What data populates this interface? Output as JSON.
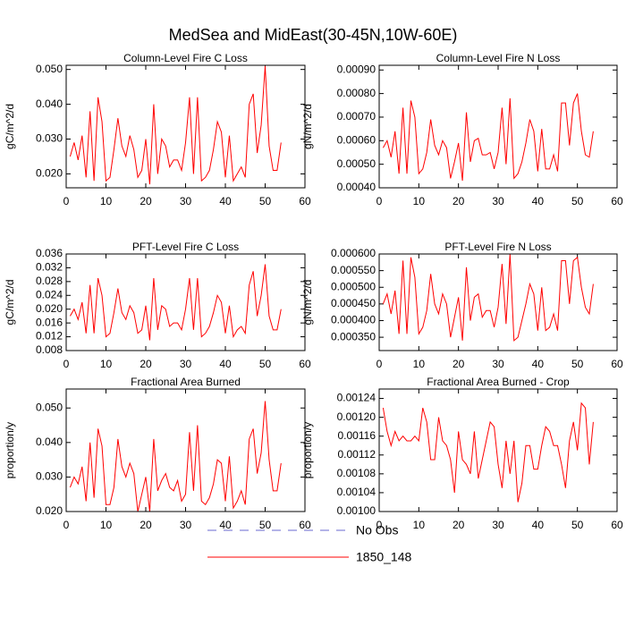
{
  "title": "MedSea and MidEast(30-45N,10W-60E)",
  "legend": [
    {
      "name": "No Obs",
      "color": "#6a6ad0",
      "dash": "dashed"
    },
    {
      "name": "1850_148",
      "color": "#ff0000",
      "dash": "solid"
    }
  ],
  "chart_data": [
    {
      "type": "line",
      "title": "Column-Level Fire C Loss",
      "ylabel": "gC/m^2/d",
      "x": [
        1,
        2,
        3,
        4,
        5,
        6,
        7,
        8,
        9,
        10,
        11,
        12,
        13,
        14,
        15,
        16,
        17,
        18,
        19,
        20,
        21,
        22,
        23,
        24,
        25,
        26,
        27,
        28,
        29,
        30,
        31,
        32,
        33,
        34,
        35,
        36,
        37,
        38,
        39,
        40,
        41,
        42,
        43,
        44,
        45,
        46,
        47,
        48,
        49,
        50,
        51,
        52,
        53,
        54
      ],
      "xlim": [
        0,
        60
      ],
      "xticks": [
        0,
        10,
        20,
        30,
        40,
        50,
        60
      ],
      "ylim": [
        0.016,
        0.0512
      ],
      "yticks": [
        {
          "value": 0.02,
          "label": "0.020"
        },
        {
          "value": 0.03,
          "label": "0.030"
        },
        {
          "value": 0.04,
          "label": "0.040"
        },
        {
          "value": 0.05,
          "label": "0.050"
        }
      ],
      "series": [
        {
          "color": "#ff0000",
          "values": [
            0.025,
            0.029,
            0.024,
            0.031,
            0.019,
            0.038,
            0.018,
            0.042,
            0.035,
            0.018,
            0.019,
            0.027,
            0.036,
            0.028,
            0.025,
            0.031,
            0.027,
            0.019,
            0.021,
            0.03,
            0.017,
            0.04,
            0.02,
            0.03,
            0.028,
            0.022,
            0.024,
            0.024,
            0.021,
            0.029,
            0.042,
            0.02,
            0.042,
            0.018,
            0.019,
            0.021,
            0.027,
            0.035,
            0.032,
            0.019,
            0.031,
            0.018,
            0.02,
            0.022,
            0.019,
            0.04,
            0.043,
            0.026,
            0.034,
            0.051,
            0.028,
            0.021,
            0.021,
            0.029
          ]
        }
      ]
    },
    {
      "type": "line",
      "title": "Column-Level Fire N Loss",
      "ylabel": "gN/m^2/d",
      "x": [
        1,
        2,
        3,
        4,
        5,
        6,
        7,
        8,
        9,
        10,
        11,
        12,
        13,
        14,
        15,
        16,
        17,
        18,
        19,
        20,
        21,
        22,
        23,
        24,
        25,
        26,
        27,
        28,
        29,
        30,
        31,
        32,
        33,
        34,
        35,
        36,
        37,
        38,
        39,
        40,
        41,
        42,
        43,
        44,
        45,
        46,
        47,
        48,
        49,
        50,
        51,
        52,
        53,
        54
      ],
      "xlim": [
        0,
        60
      ],
      "xticks": [
        0,
        10,
        20,
        30,
        40,
        50,
        60
      ],
      "ylim": [
        0.0004,
        0.00092
      ],
      "yticks": [
        {
          "value": 0.0004,
          "label": "0.00040"
        },
        {
          "value": 0.0005,
          "label": "0.00050"
        },
        {
          "value": 0.0006,
          "label": "0.00060"
        },
        {
          "value": 0.0007,
          "label": "0.00070"
        },
        {
          "value": 0.0008,
          "label": "0.00080"
        },
        {
          "value": 0.0009,
          "label": "0.00090"
        }
      ],
      "series": [
        {
          "color": "#ff0000",
          "values": [
            0.00057,
            0.0006,
            0.00053,
            0.00064,
            0.00046,
            0.00074,
            0.00046,
            0.00077,
            0.0007,
            0.00046,
            0.00048,
            0.00055,
            0.00069,
            0.00058,
            0.00054,
            0.0006,
            0.00057,
            0.00044,
            0.00051,
            0.00059,
            0.00043,
            0.00072,
            0.00051,
            0.0006,
            0.00061,
            0.00054,
            0.00054,
            0.00055,
            0.00048,
            0.00055,
            0.00074,
            0.0005,
            0.00078,
            0.00044,
            0.00046,
            0.00051,
            0.00059,
            0.00069,
            0.00064,
            0.00047,
            0.00065,
            0.00048,
            0.00048,
            0.00054,
            0.00047,
            0.00076,
            0.00076,
            0.00058,
            0.00076,
            0.0008,
            0.00064,
            0.00054,
            0.00053,
            0.00064
          ]
        }
      ]
    },
    {
      "type": "line",
      "title": "PFT-Level Fire C Loss",
      "ylabel": "gC/m^2/d",
      "x": [
        1,
        2,
        3,
        4,
        5,
        6,
        7,
        8,
        9,
        10,
        11,
        12,
        13,
        14,
        15,
        16,
        17,
        18,
        19,
        20,
        21,
        22,
        23,
        24,
        25,
        26,
        27,
        28,
        29,
        30,
        31,
        32,
        33,
        34,
        35,
        36,
        37,
        38,
        39,
        40,
        41,
        42,
        43,
        44,
        45,
        46,
        47,
        48,
        49,
        50,
        51,
        52,
        53,
        54
      ],
      "xlim": [
        0,
        60
      ],
      "xticks": [
        0,
        10,
        20,
        30,
        40,
        50,
        60
      ],
      "ylim": [
        0.008,
        0.036
      ],
      "yticks": [
        {
          "value": 0.008,
          "label": "0.008"
        },
        {
          "value": 0.012,
          "label": "0.012"
        },
        {
          "value": 0.016,
          "label": "0.016"
        },
        {
          "value": 0.02,
          "label": "0.020"
        },
        {
          "value": 0.024,
          "label": "0.024"
        },
        {
          "value": 0.028,
          "label": "0.028"
        },
        {
          "value": 0.032,
          "label": "0.032"
        },
        {
          "value": 0.036,
          "label": "0.036"
        }
      ],
      "series": [
        {
          "color": "#ff0000",
          "values": [
            0.018,
            0.02,
            0.017,
            0.022,
            0.013,
            0.027,
            0.013,
            0.029,
            0.024,
            0.012,
            0.013,
            0.019,
            0.026,
            0.019,
            0.017,
            0.021,
            0.019,
            0.013,
            0.014,
            0.021,
            0.011,
            0.029,
            0.014,
            0.021,
            0.02,
            0.015,
            0.016,
            0.016,
            0.014,
            0.02,
            0.029,
            0.014,
            0.029,
            0.012,
            0.013,
            0.015,
            0.019,
            0.024,
            0.022,
            0.013,
            0.021,
            0.012,
            0.014,
            0.015,
            0.013,
            0.027,
            0.031,
            0.018,
            0.024,
            0.033,
            0.018,
            0.014,
            0.014,
            0.02
          ]
        }
      ]
    },
    {
      "type": "line",
      "title": "PFT-Level Fire N Loss",
      "ylabel": "gN/m^2/d",
      "x": [
        1,
        2,
        3,
        4,
        5,
        6,
        7,
        8,
        9,
        10,
        11,
        12,
        13,
        14,
        15,
        16,
        17,
        18,
        19,
        20,
        21,
        22,
        23,
        24,
        25,
        26,
        27,
        28,
        29,
        30,
        31,
        32,
        33,
        34,
        35,
        36,
        37,
        38,
        39,
        40,
        41,
        42,
        43,
        44,
        45,
        46,
        47,
        48,
        49,
        50,
        51,
        52,
        53,
        54
      ],
      "xlim": [
        0,
        60
      ],
      "xticks": [
        0,
        10,
        20,
        30,
        40,
        50,
        60
      ],
      "ylim": [
        0.00031,
        0.0006
      ],
      "yticks": [
        {
          "value": 0.00035,
          "label": "0.000350"
        },
        {
          "value": 0.0004,
          "label": "0.000400"
        },
        {
          "value": 0.00045,
          "label": "0.000450"
        },
        {
          "value": 0.0005,
          "label": "0.000500"
        },
        {
          "value": 0.00055,
          "label": "0.000550"
        },
        {
          "value": 0.0006,
          "label": "0.000600"
        }
      ],
      "series": [
        {
          "color": "#ff0000",
          "values": [
            0.00045,
            0.00048,
            0.00042,
            0.00049,
            0.00036,
            0.00058,
            0.00036,
            0.00059,
            0.00053,
            0.00036,
            0.00038,
            0.00043,
            0.00054,
            0.00045,
            0.00042,
            0.00048,
            0.00045,
            0.00035,
            0.00041,
            0.00047,
            0.00034,
            0.00056,
            0.0004,
            0.00047,
            0.00048,
            0.00041,
            0.00043,
            0.00043,
            0.00038,
            0.00044,
            0.00057,
            0.00039,
            0.0006,
            0.00034,
            0.00035,
            0.0004,
            0.00045,
            0.00051,
            0.00048,
            0.00037,
            0.0005,
            0.00037,
            0.00038,
            0.00042,
            0.00037,
            0.00058,
            0.00058,
            0.00045,
            0.00058,
            0.00059,
            0.0005,
            0.00044,
            0.00042,
            0.00051
          ]
        }
      ]
    },
    {
      "type": "line",
      "title": "Fractional Area Burned",
      "ylabel": "proportion/y",
      "x": [
        1,
        2,
        3,
        4,
        5,
        6,
        7,
        8,
        9,
        10,
        11,
        12,
        13,
        14,
        15,
        16,
        17,
        18,
        19,
        20,
        21,
        22,
        23,
        24,
        25,
        26,
        27,
        28,
        29,
        30,
        31,
        32,
        33,
        34,
        35,
        36,
        37,
        38,
        39,
        40,
        41,
        42,
        43,
        44,
        45,
        46,
        47,
        48,
        49,
        50,
        51,
        52,
        53,
        54
      ],
      "xlim": [
        0,
        60
      ],
      "xticks": [
        0,
        10,
        20,
        30,
        40,
        50,
        60
      ],
      "ylim": [
        0.02,
        0.0555
      ],
      "yticks": [
        {
          "value": 0.02,
          "label": "0.020"
        },
        {
          "value": 0.03,
          "label": "0.030"
        },
        {
          "value": 0.04,
          "label": "0.040"
        },
        {
          "value": 0.05,
          "label": "0.050"
        }
      ],
      "series": [
        {
          "color": "#ff0000",
          "values": [
            0.027,
            0.03,
            0.028,
            0.033,
            0.023,
            0.04,
            0.024,
            0.044,
            0.039,
            0.022,
            0.022,
            0.027,
            0.041,
            0.033,
            0.03,
            0.034,
            0.031,
            0.02,
            0.025,
            0.03,
            0.02,
            0.041,
            0.026,
            0.029,
            0.031,
            0.027,
            0.026,
            0.029,
            0.023,
            0.025,
            0.043,
            0.026,
            0.045,
            0.023,
            0.022,
            0.024,
            0.028,
            0.035,
            0.034,
            0.023,
            0.036,
            0.021,
            0.023,
            0.026,
            0.022,
            0.041,
            0.044,
            0.031,
            0.037,
            0.052,
            0.035,
            0.026,
            0.026,
            0.034
          ]
        }
      ]
    },
    {
      "type": "line",
      "title": "Fractional Area Burned - Crop",
      "ylabel": "proportion/y",
      "x": [
        1,
        2,
        3,
        4,
        5,
        6,
        7,
        8,
        9,
        10,
        11,
        12,
        13,
        14,
        15,
        16,
        17,
        18,
        19,
        20,
        21,
        22,
        23,
        24,
        25,
        26,
        27,
        28,
        29,
        30,
        31,
        32,
        33,
        34,
        35,
        36,
        37,
        38,
        39,
        40,
        41,
        42,
        43,
        44,
        45,
        46,
        47,
        48,
        49,
        50,
        51,
        52,
        53,
        54
      ],
      "xlim": [
        0,
        60
      ],
      "xticks": [
        0,
        10,
        20,
        30,
        40,
        50,
        60
      ],
      "ylim": [
        0.001,
        0.00126
      ],
      "yticks": [
        {
          "value": 0.001,
          "label": "0.00100"
        },
        {
          "value": 0.00104,
          "label": "0.00104"
        },
        {
          "value": 0.00108,
          "label": "0.00108"
        },
        {
          "value": 0.00112,
          "label": "0.00112"
        },
        {
          "value": 0.00116,
          "label": "0.00116"
        },
        {
          "value": 0.0012,
          "label": "0.00120"
        },
        {
          "value": 0.00124,
          "label": "0.00124"
        }
      ],
      "series": [
        {
          "color": "#ff0000",
          "values": [
            0.00122,
            0.00117,
            0.00114,
            0.00117,
            0.00115,
            0.00116,
            0.00115,
            0.00115,
            0.00116,
            0.00115,
            0.00122,
            0.00119,
            0.00111,
            0.00111,
            0.0012,
            0.00115,
            0.00114,
            0.00111,
            0.00104,
            0.00117,
            0.00111,
            0.0011,
            0.00108,
            0.00117,
            0.00107,
            0.00111,
            0.00115,
            0.00119,
            0.00118,
            0.0011,
            0.00105,
            0.00115,
            0.00108,
            0.00115,
            0.00102,
            0.00106,
            0.00114,
            0.00114,
            0.00109,
            0.00109,
            0.00114,
            0.00118,
            0.00117,
            0.00114,
            0.00114,
            0.0011,
            0.00105,
            0.00115,
            0.00119,
            0.00113,
            0.00123,
            0.00122,
            0.0011,
            0.00119
          ]
        }
      ]
    }
  ]
}
